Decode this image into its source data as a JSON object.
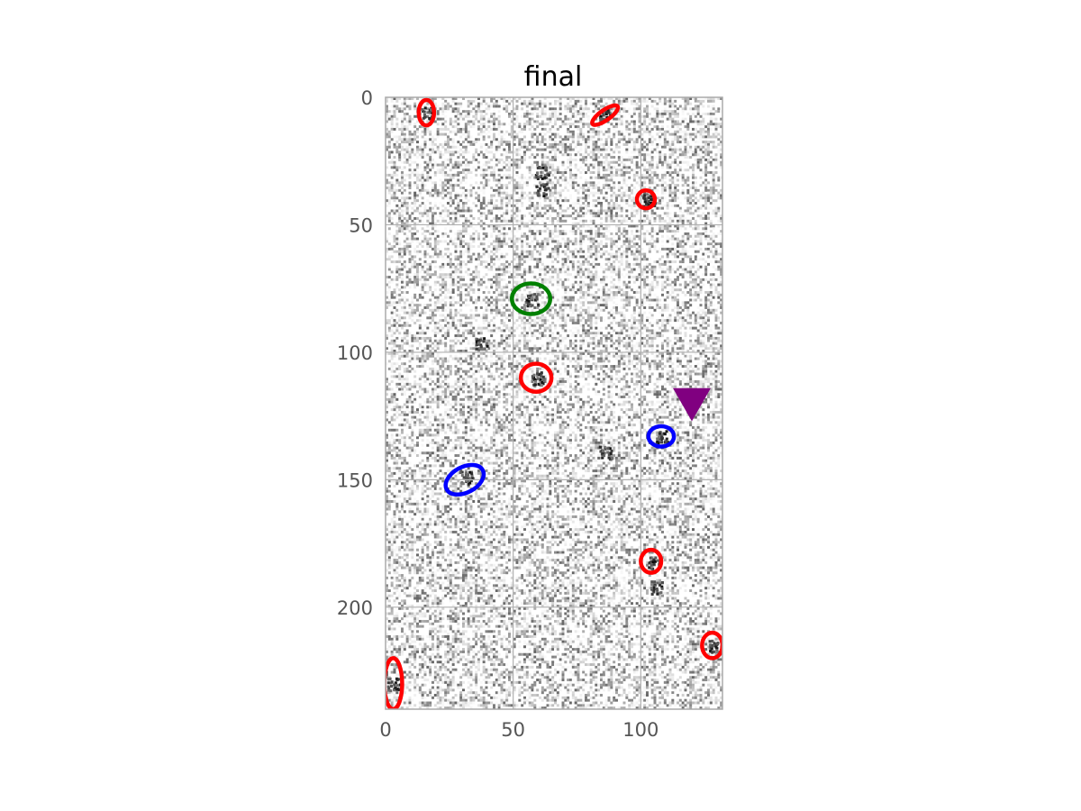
{
  "chart_data": {
    "type": "image",
    "title": "final",
    "xlabel": "",
    "ylabel": "",
    "xlim": [
      0,
      132
    ],
    "ylim": [
      240,
      0
    ],
    "y_inverted": true,
    "grid": true,
    "colormap": "gray_r",
    "x_ticks": [
      0,
      50,
      100
    ],
    "y_ticks": [
      0,
      50,
      100,
      150,
      200
    ],
    "sources": [
      {
        "x": 59,
        "y": 110
      },
      {
        "x": 57,
        "y": 79
      },
      {
        "x": 31,
        "y": 149
      },
      {
        "x": 108,
        "y": 133
      },
      {
        "x": 105,
        "y": 182
      },
      {
        "x": 129,
        "y": 215
      },
      {
        "x": 3,
        "y": 230
      },
      {
        "x": 103,
        "y": 40
      },
      {
        "x": 16,
        "y": 6
      },
      {
        "x": 86,
        "y": 7
      },
      {
        "x": 61,
        "y": 29
      },
      {
        "x": 61,
        "y": 36
      },
      {
        "x": 86,
        "y": 139
      },
      {
        "x": 37,
        "y": 96
      },
      {
        "x": 106,
        "y": 192
      }
    ],
    "ellipses": [
      {
        "color": "red",
        "x": 16,
        "y": 6,
        "width": 6,
        "height": 10,
        "angle": 0
      },
      {
        "color": "red",
        "x": 86,
        "y": 7,
        "width": 4,
        "height": 12,
        "angle": 55
      },
      {
        "color": "red",
        "x": 102,
        "y": 40,
        "width": 7,
        "height": 7,
        "angle": 0
      },
      {
        "color": "green",
        "x": 57,
        "y": 79,
        "width": 15,
        "height": 12,
        "angle": 0
      },
      {
        "color": "red",
        "x": 59,
        "y": 110,
        "width": 12,
        "height": 11,
        "angle": 0
      },
      {
        "color": "blue",
        "x": 108,
        "y": 133,
        "width": 10,
        "height": 8,
        "angle": 0
      },
      {
        "color": "blue",
        "x": 31,
        "y": 150,
        "width": 16,
        "height": 10,
        "angle": -28
      },
      {
        "color": "red",
        "x": 104,
        "y": 182,
        "width": 8,
        "height": 9,
        "angle": 0
      },
      {
        "color": "red",
        "x": 128,
        "y": 215,
        "width": 8,
        "height": 10,
        "angle": 0
      },
      {
        "color": "red",
        "x": 3,
        "y": 230,
        "width": 7,
        "height": 20,
        "angle": 0
      }
    ],
    "markers": [
      {
        "shape": "triangle-down",
        "color": "purple",
        "x": 120,
        "y": 120
      }
    ]
  }
}
